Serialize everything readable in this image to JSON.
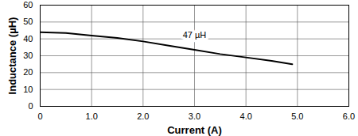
{
  "chart_data": {
    "type": "line",
    "x_label": "Current (A)",
    "y_label": "Inductance (µH)",
    "x": [
      0,
      0.5,
      1.0,
      1.5,
      2.0,
      2.5,
      3.0,
      3.5,
      4.0,
      4.5,
      4.9
    ],
    "series": [
      {
        "name": "47 µH",
        "color": "#000000",
        "values": [
          44,
          43.5,
          42,
          40.5,
          38.5,
          36,
          33.5,
          31,
          29,
          27,
          25
        ]
      }
    ],
    "annotations": [
      {
        "text": "47 µH",
        "x": 3.0,
        "y": 42
      }
    ],
    "xlim": [
      0,
      6
    ],
    "xticks": [
      0,
      {
        "value": 1,
        "label": "1.0"
      },
      {
        "value": 2,
        "label": "2.0"
      },
      {
        "value": 3,
        "label": "3.0"
      },
      {
        "value": 4,
        "label": "4.0"
      },
      {
        "value": 5,
        "label": "5.0"
      },
      {
        "value": 6,
        "label": "6.0"
      }
    ],
    "ylim": [
      0,
      60
    ],
    "yticks": [
      0,
      10,
      20,
      30,
      40,
      50,
      60
    ],
    "grid": true
  }
}
